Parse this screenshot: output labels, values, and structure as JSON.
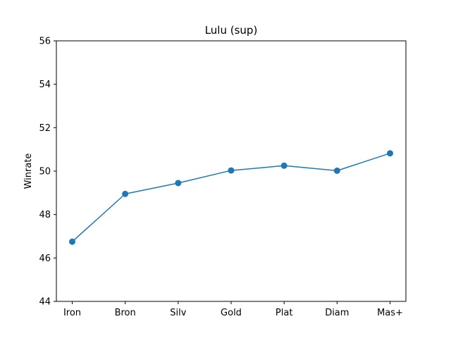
{
  "chart_data": {
    "type": "line",
    "title": "Lulu (sup)",
    "xlabel": "",
    "ylabel": "Winrate",
    "categories": [
      "Iron",
      "Bron",
      "Silv",
      "Gold",
      "Plat",
      "Diam",
      "Mas+"
    ],
    "series": [
      {
        "values": [
          46.75,
          48.95,
          49.45,
          50.03,
          50.25,
          50.02,
          50.82
        ],
        "color": "#1f77b4",
        "marker": "circle"
      }
    ],
    "ylim": [
      44,
      56
    ],
    "yticks": [
      "44",
      "46",
      "48",
      "50",
      "52",
      "54",
      "56"
    ],
    "grid": false,
    "legend": "none"
  }
}
